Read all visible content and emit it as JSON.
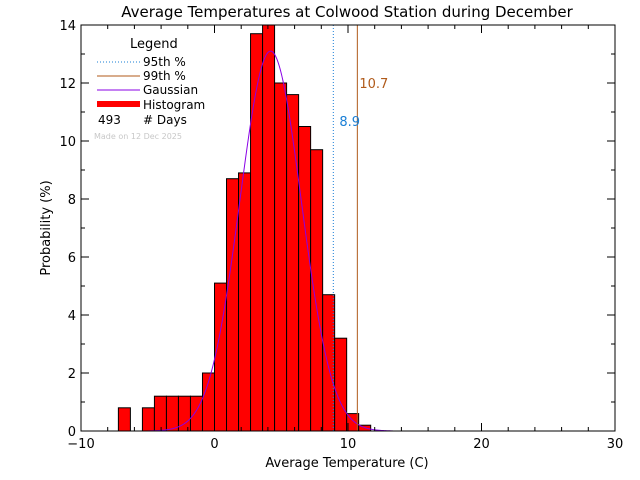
{
  "colors": {
    "histogram": "#ff0000",
    "gaussian": "#8a00e6",
    "p95": "#1a7fd6",
    "p99": "#b05a1a",
    "axis": "#000000"
  },
  "chart_data": {
    "type": "bar",
    "title": "Average Temperatures at Colwood Station during December",
    "xlabel": "Average Temperature (C)",
    "ylabel": "Probability (%)",
    "xlim": [
      -10,
      30
    ],
    "ylim": [
      0,
      14
    ],
    "xticks": [
      -10,
      0,
      10,
      20,
      30
    ],
    "yticks": [
      0,
      2,
      4,
      6,
      8,
      10,
      12,
      14
    ],
    "bin_width": 0.9,
    "bins": [
      {
        "start": -7.2,
        "value": 0.8
      },
      {
        "start": -5.4,
        "value": 0.8
      },
      {
        "start": -4.5,
        "value": 1.2
      },
      {
        "start": -3.6,
        "value": 1.2
      },
      {
        "start": -2.7,
        "value": 1.2
      },
      {
        "start": -1.8,
        "value": 1.2
      },
      {
        "start": -0.9,
        "value": 2.0
      },
      {
        "start": 0.0,
        "value": 5.1
      },
      {
        "start": 0.9,
        "value": 8.7
      },
      {
        "start": 1.8,
        "value": 8.9
      },
      {
        "start": 2.7,
        "value": 13.7
      },
      {
        "start": 3.6,
        "value": 14.2
      },
      {
        "start": 4.5,
        "value": 12.0
      },
      {
        "start": 5.4,
        "value": 11.6
      },
      {
        "start": 6.3,
        "value": 10.5
      },
      {
        "start": 7.2,
        "value": 9.7
      },
      {
        "start": 8.1,
        "value": 4.7
      },
      {
        "start": 9.0,
        "value": 3.2
      },
      {
        "start": 9.9,
        "value": 0.6
      },
      {
        "start": 10.8,
        "value": 0.2
      }
    ],
    "gaussian": {
      "mean": 4.2,
      "sigma": 2.3,
      "peak": 13.1
    },
    "percentile_95": {
      "value": 8.9,
      "label": "8.9"
    },
    "percentile_99": {
      "value": 10.7,
      "label": "10.7"
    },
    "legend": {
      "title": "Legend",
      "position": "top-left",
      "entries": [
        "95th %",
        "99th %",
        "Gaussian",
        "Histogram"
      ],
      "days_count": "493",
      "days_label": "# Days"
    },
    "made_on": "Made on 12 Dec 2025"
  }
}
